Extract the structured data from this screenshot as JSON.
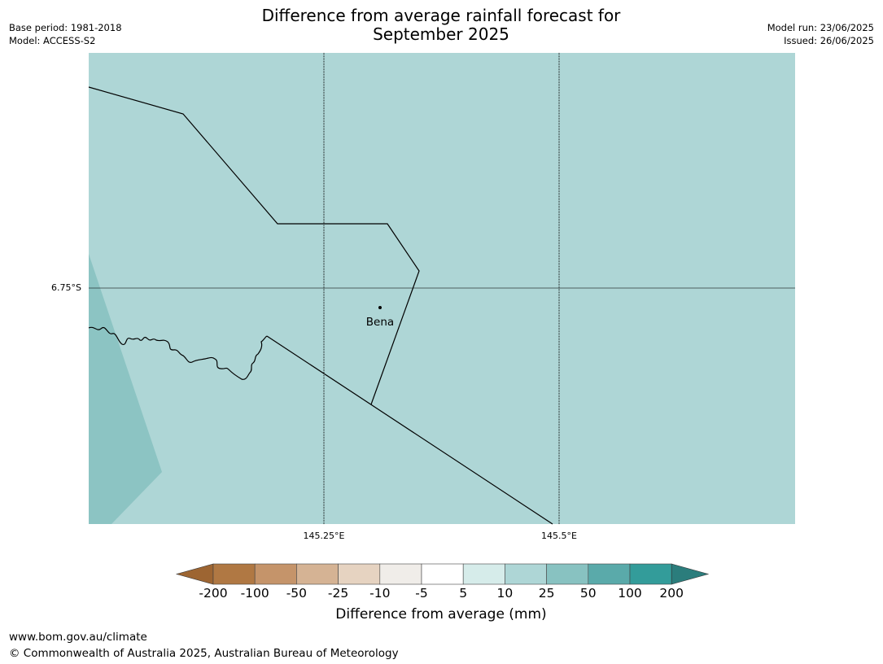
{
  "title": {
    "line1": "Difference from average rainfall forecast for",
    "line2": "September 2025"
  },
  "meta_left": {
    "base_period": "Base period: 1981-2018",
    "model": "Model: ACCESS-S2"
  },
  "meta_right": {
    "model_run": "Model run: 23/06/2025",
    "issued": "Issued: 26/06/2025"
  },
  "map": {
    "ocean_land_fill_color": "#aed6d6",
    "higher_band_color": "#88c2c1",
    "gridline_color": "#000000",
    "lat_label": "6.75°S",
    "lon_labels": [
      "145.25°E",
      "145.5°E"
    ],
    "place": {
      "name": "Bena"
    }
  },
  "legend": {
    "colors": [
      "#9d6532",
      "#b07843",
      "#c5946a",
      "#d5b394",
      "#e6d3c1",
      "#f0ede9",
      "#ffffff",
      "#d6ecea",
      "#aed6d6",
      "#88c2c1",
      "#5aaaaa",
      "#339c9a",
      "#2b7d7c"
    ],
    "ticks": [
      "-200",
      "-100",
      "-50",
      "-25",
      "-10",
      "-5",
      "5",
      "10",
      "25",
      "50",
      "100",
      "200"
    ],
    "label": "Difference from average (mm)"
  },
  "footer": {
    "url": "www.bom.gov.au/climate",
    "copyright": "© Commonwealth of Australia 2025, Australian Bureau of Meteorology"
  }
}
